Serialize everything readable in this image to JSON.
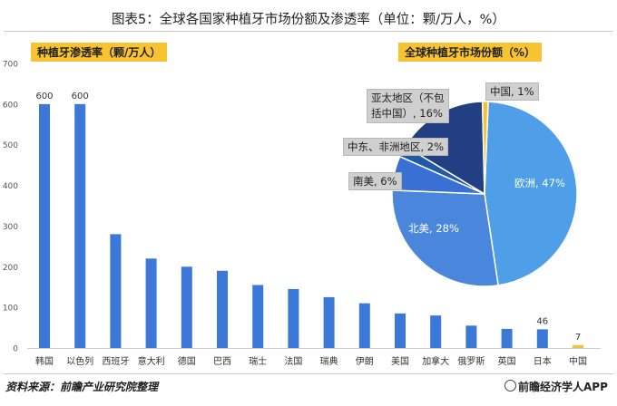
{
  "title": "图表5：全球各国家种植牙市场份额及渗透率（单位：颗/万人，%）",
  "bar_badge": "种植牙渗透率（颗/万人）",
  "pie_badge": "全球种植牙市场份额（%）",
  "source": "资料来源：前瞻产业研究院整理",
  "brand": "前瞻经济学人APP",
  "colors": {
    "bar": "#3b78d8",
    "bar_highlight": "#f3c230",
    "pie_europe": "#4f9ee8",
    "pie_na": "#4a86dc",
    "pie_sa": "#3a6fd4",
    "pie_me": "#1f5aa8",
    "pie_apac": "#213f82",
    "pie_china": "#f3c230"
  },
  "chart_data": [
    {
      "type": "bar",
      "title": "种植牙渗透率（颗/万人）",
      "categories": [
        "韩国",
        "以色列",
        "西班牙",
        "意大利",
        "德国",
        "巴西",
        "瑞士",
        "法国",
        "瑞典",
        "伊朗",
        "美国",
        "加拿大",
        "俄罗斯",
        "英国",
        "日本",
        "中国"
      ],
      "values": [
        600,
        600,
        280,
        220,
        200,
        190,
        155,
        145,
        125,
        110,
        85,
        80,
        55,
        47,
        46,
        7
      ],
      "data_labels": {
        "韩国": "600",
        "以色列": "600",
        "日本": "46",
        "中国": "7"
      },
      "highlight": "中国",
      "ylim": [
        0,
        700
      ],
      "yticks": [
        "0",
        "100",
        "200",
        "300",
        "400",
        "500",
        "600",
        "700"
      ],
      "grid": false
    },
    {
      "type": "pie",
      "title": "全球种植牙市场份额（%）",
      "slices": [
        {
          "name": "欧洲",
          "value": 47,
          "label": "欧洲, 47%"
        },
        {
          "name": "北美",
          "value": 28,
          "label": "北美, 28%"
        },
        {
          "name": "南美",
          "value": 6,
          "label": "南美, 6%"
        },
        {
          "name": "中东、非洲地区",
          "value": 2,
          "label": "中东、非洲地区, 2%"
        },
        {
          "name": "亚太地区（不包括中国）",
          "value": 16,
          "label_line1": "亚太地区（不包",
          "label_line2": "括中国）, 16%"
        },
        {
          "name": "中国",
          "value": 1,
          "label": "中国, 1%"
        }
      ]
    }
  ]
}
